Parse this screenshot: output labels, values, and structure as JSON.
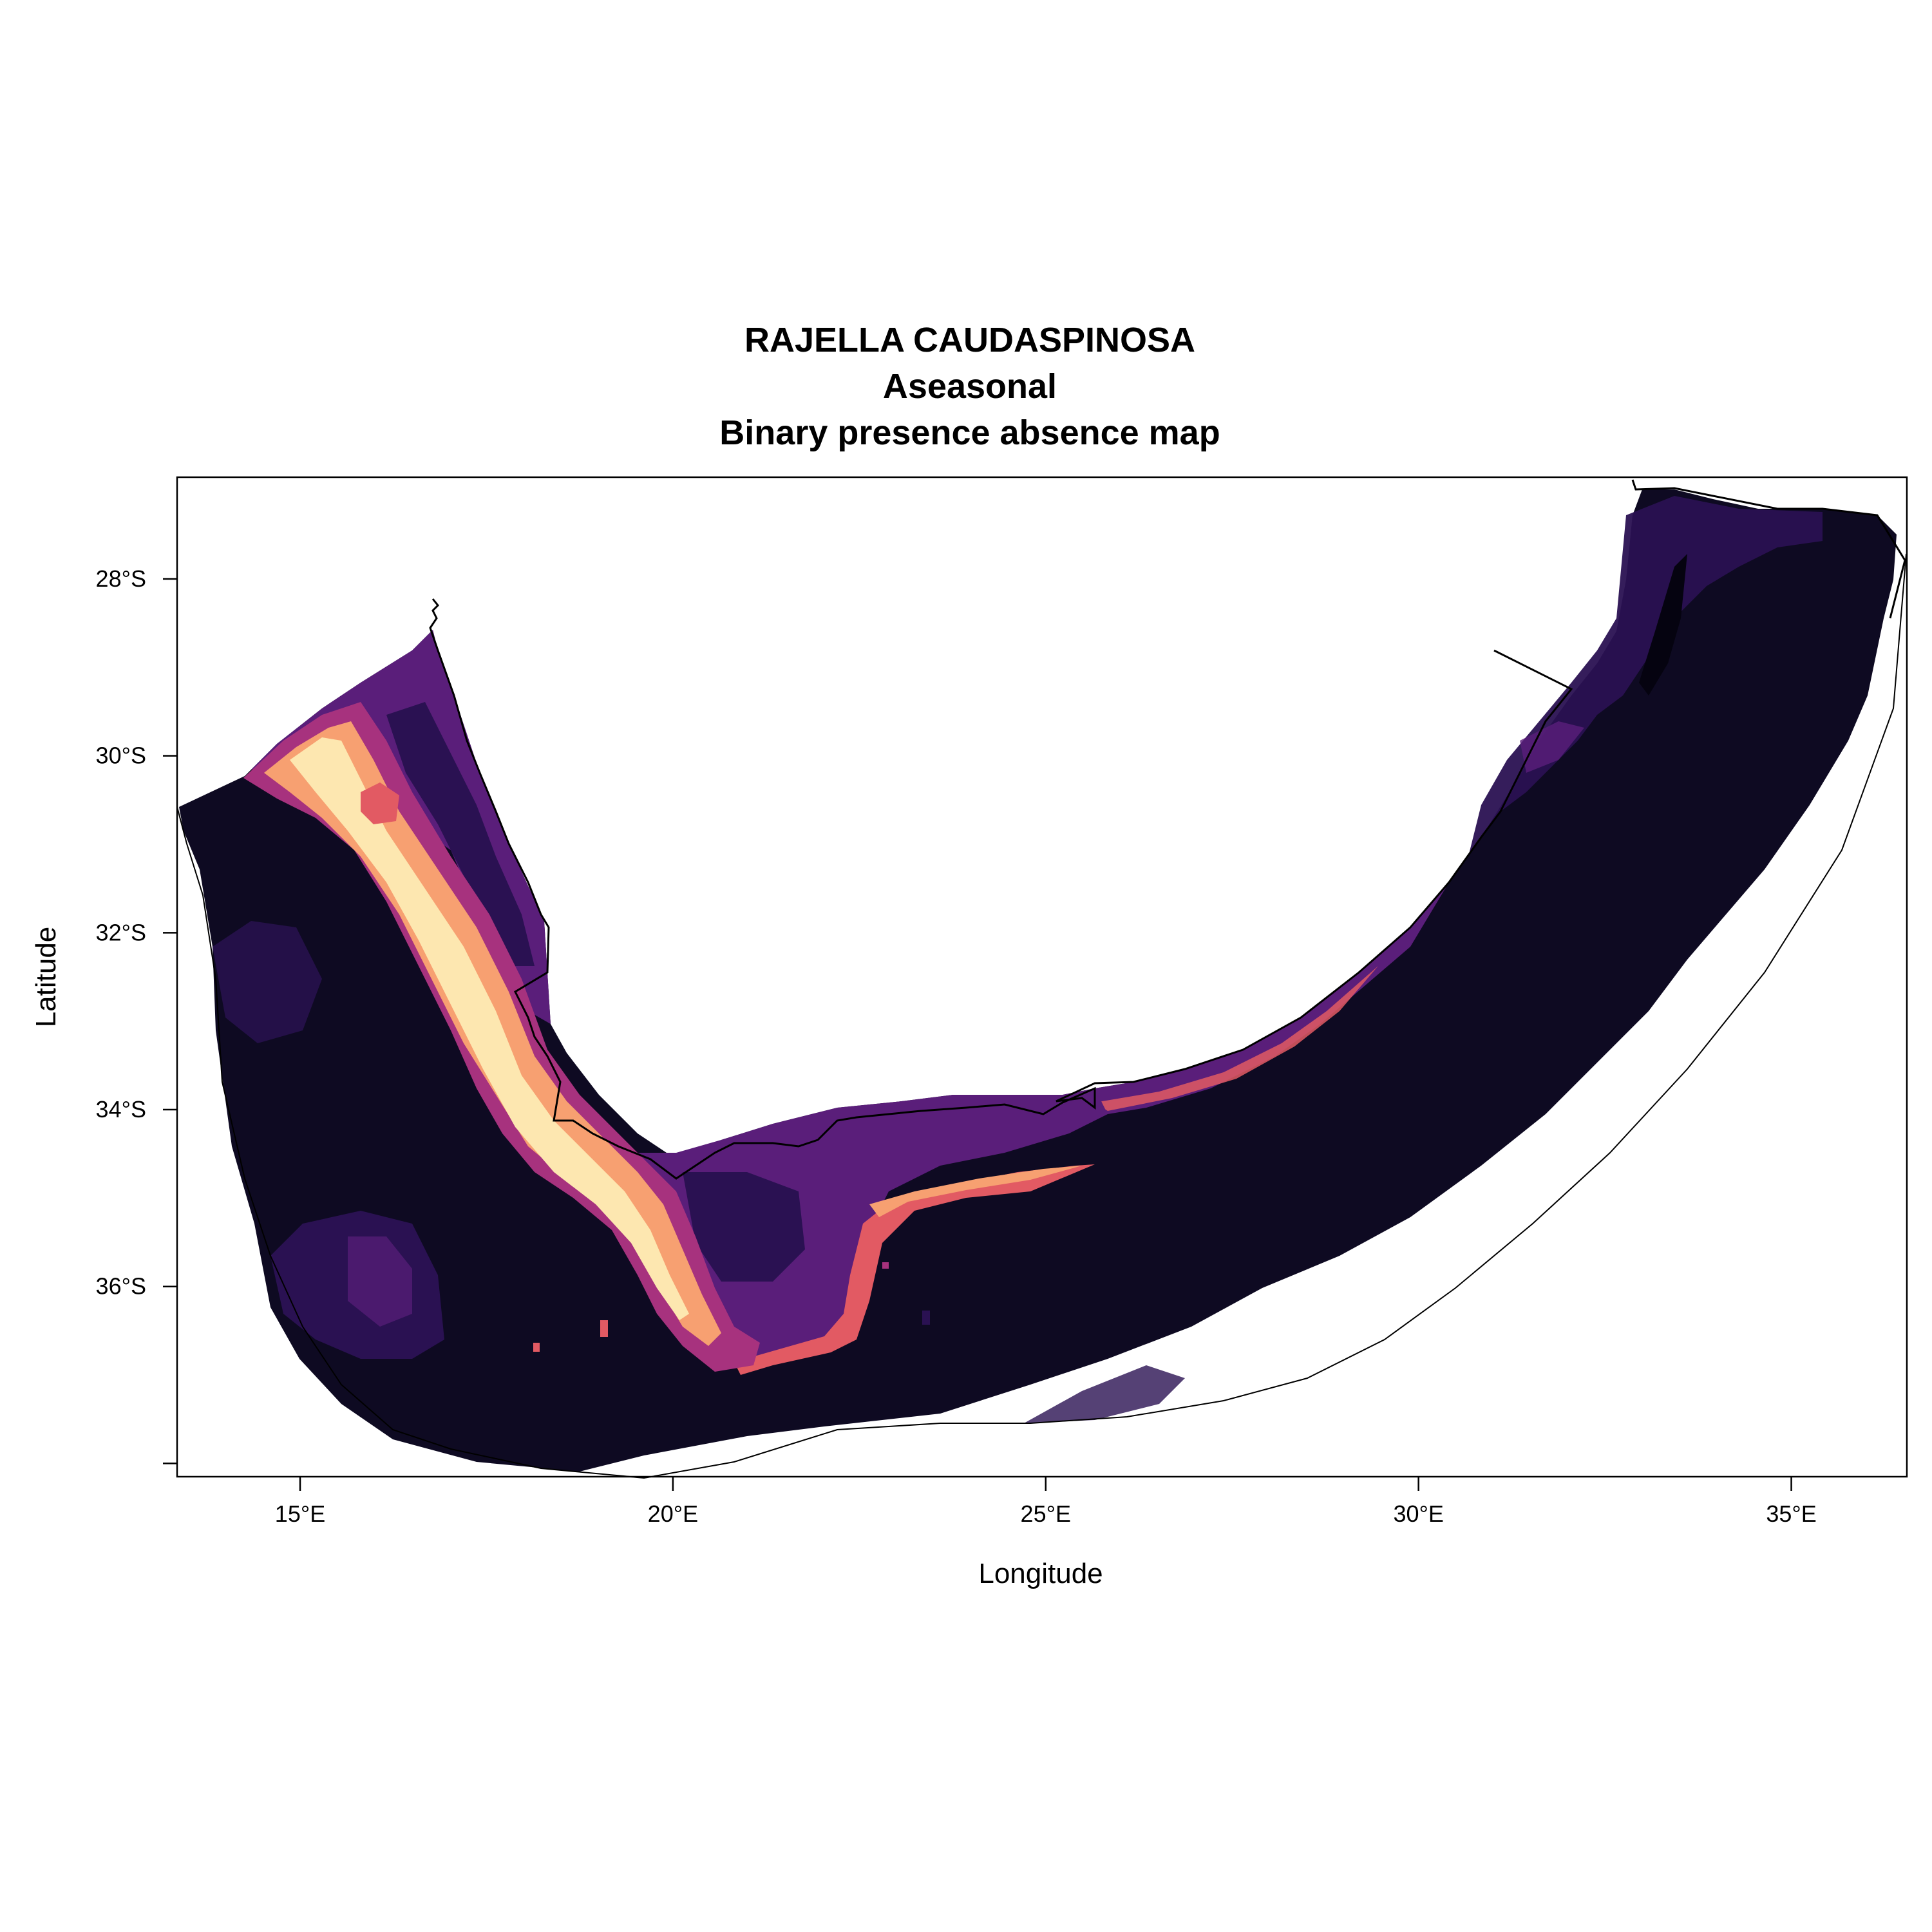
{
  "title": {
    "line1": "RAJELLA CAUDASPINOSA",
    "line2": "Aseasonal",
    "line3": "Binary presence absence map"
  },
  "xlabel": "Longitude",
  "ylabel": "Latitude",
  "x_ticks": [
    {
      "value": 15,
      "label": "15°E"
    },
    {
      "value": 20,
      "label": "20°E"
    },
    {
      "value": 25,
      "label": "25°E"
    },
    {
      "value": 30,
      "label": "30°E"
    },
    {
      "value": 35,
      "label": "35°E"
    }
  ],
  "y_ticks": [
    {
      "value": -28,
      "label": "28°S"
    },
    {
      "value": -30,
      "label": "30°S"
    },
    {
      "value": -32,
      "label": "32°S"
    },
    {
      "value": -34,
      "label": "34°S"
    },
    {
      "value": -36,
      "label": "36°S"
    },
    {
      "value": -38,
      "label": ""
    }
  ],
  "chart_data": {
    "type": "heatmap",
    "xlim": [
      13.35,
      36.55
    ],
    "ylim": [
      -38.15,
      -26.85
    ],
    "palette": [
      "#0e0a22",
      "#2a1152",
      "#5a1e7a",
      "#a7327e",
      "#e25a63",
      "#f7a071",
      "#fde7b0"
    ],
    "coastline_color": "#000000",
    "grid": false,
    "legend": "none"
  }
}
